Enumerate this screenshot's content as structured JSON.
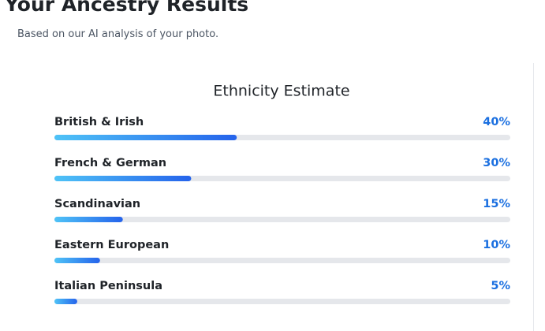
{
  "header": {
    "title": "Your Ancestry Results",
    "subtitle": "Based on our AI analysis of your photo."
  },
  "chart_data": {
    "type": "progress",
    "title": "Ethnicity Estimate",
    "categories": [
      "British & Irish",
      "French & German",
      "Scandinavian",
      "Eastern European",
      "Italian Peninsula"
    ],
    "values": [
      40,
      30,
      15,
      10,
      5
    ],
    "value_labels": [
      "40%",
      "30%",
      "15%",
      "10%",
      "5%"
    ],
    "xlim": [
      0,
      100
    ]
  }
}
